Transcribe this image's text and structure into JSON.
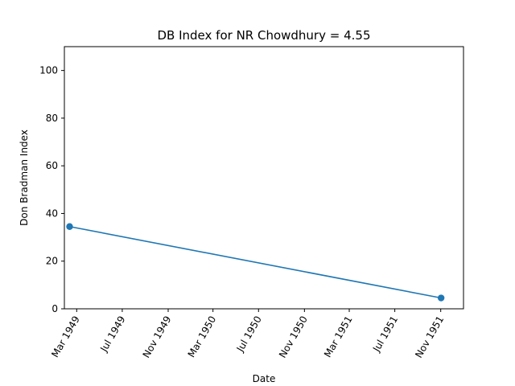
{
  "chart_data": {
    "type": "line",
    "title": "DB Index for NR Chowdhury = 4.55",
    "xlabel": "Date",
    "ylabel": "Don Bradman Index",
    "xlim": [
      "1949-01-27",
      "1952-01-01"
    ],
    "ylim": [
      0,
      110
    ],
    "x_ticks": [
      {
        "date": "1949-03-01",
        "label": "Mar 1949"
      },
      {
        "date": "1949-07-01",
        "label": "Jul 1949"
      },
      {
        "date": "1949-11-01",
        "label": "Nov 1949"
      },
      {
        "date": "1950-03-01",
        "label": "Mar 1950"
      },
      {
        "date": "1950-07-01",
        "label": "Jul 1950"
      },
      {
        "date": "1950-11-01",
        "label": "Nov 1950"
      },
      {
        "date": "1951-03-01",
        "label": "Mar 1951"
      },
      {
        "date": "1951-07-01",
        "label": "Jul 1951"
      },
      {
        "date": "1951-11-01",
        "label": "Nov 1951"
      }
    ],
    "y_ticks": [
      0,
      20,
      40,
      60,
      80,
      100
    ],
    "grid": false,
    "series": [
      {
        "color": "#1f77b4",
        "marker": "circle",
        "points": [
          {
            "x": "1949-02-10",
            "y": 34.5
          },
          {
            "x": "1951-11-02",
            "y": 4.55
          }
        ]
      }
    ]
  }
}
